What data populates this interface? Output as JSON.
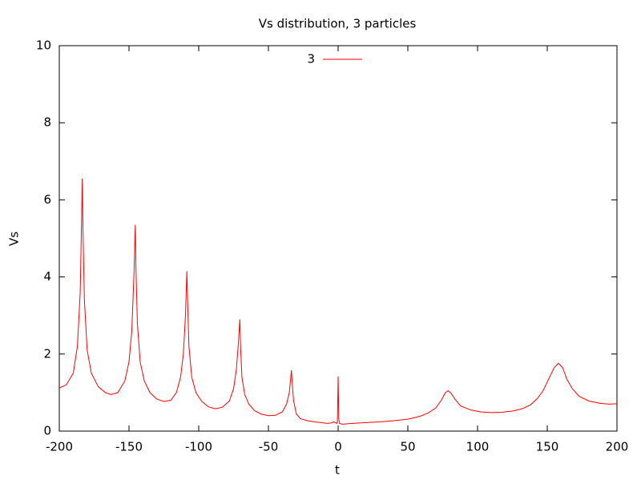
{
  "chart_data": {
    "type": "line",
    "title": "Vs distribution, 3 particles",
    "xlabel": "t",
    "ylabel": "Vs",
    "x": [
      -200,
      -195,
      -190,
      -187,
      -185,
      -184,
      -183.5,
      -183,
      -182,
      -180,
      -177,
      -172,
      -167,
      -163,
      -158,
      -153,
      -150,
      -148,
      -146.5,
      -145.5,
      -145,
      -144,
      -142,
      -139,
      -135,
      -130,
      -125,
      -120,
      -116,
      -113,
      -111,
      -109.5,
      -108.5,
      -108,
      -107,
      -105,
      -102,
      -98,
      -93,
      -88,
      -83,
      -78,
      -75,
      -73,
      -71.5,
      -70.5,
      -70,
      -69,
      -67,
      -64,
      -60,
      -55,
      -50,
      -45,
      -40,
      -37,
      -35,
      -33.5,
      -33,
      -32,
      -30,
      -27,
      -22,
      -17,
      -12,
      -8,
      -5,
      -3,
      -1,
      -0.5,
      0,
      0.5,
      1,
      3,
      10,
      20,
      30,
      40,
      50,
      55,
      60,
      65,
      70,
      74,
      77,
      79,
      81,
      84,
      88,
      95,
      102,
      110,
      118,
      125,
      132,
      138,
      143,
      147,
      151,
      155,
      158,
      161,
      164,
      168,
      173,
      180,
      188,
      195,
      200
    ],
    "series": [
      {
        "name": "3",
        "color": "#ff0000",
        "values": [
          1.12,
          1.2,
          1.5,
          2.2,
          3.6,
          5.5,
          6.55,
          5.2,
          3.4,
          2.1,
          1.5,
          1.15,
          1.0,
          0.95,
          1.0,
          1.3,
          1.8,
          2.6,
          4.0,
          5.35,
          4.2,
          2.8,
          1.8,
          1.3,
          1.0,
          0.83,
          0.77,
          0.8,
          1.0,
          1.4,
          2.0,
          3.0,
          4.15,
          3.4,
          2.2,
          1.4,
          1.0,
          0.78,
          0.63,
          0.58,
          0.62,
          0.78,
          1.1,
          1.6,
          2.3,
          2.9,
          2.2,
          1.4,
          0.95,
          0.7,
          0.53,
          0.44,
          0.4,
          0.41,
          0.5,
          0.7,
          1.0,
          1.58,
          1.3,
          0.8,
          0.45,
          0.32,
          0.27,
          0.24,
          0.22,
          0.2,
          0.21,
          0.24,
          0.2,
          0.25,
          1.42,
          0.3,
          0.2,
          0.18,
          0.2,
          0.22,
          0.24,
          0.27,
          0.31,
          0.35,
          0.4,
          0.48,
          0.6,
          0.8,
          1.0,
          1.05,
          0.98,
          0.82,
          0.65,
          0.55,
          0.5,
          0.48,
          0.49,
          0.52,
          0.58,
          0.68,
          0.85,
          1.05,
          1.35,
          1.65,
          1.76,
          1.65,
          1.35,
          1.1,
          0.9,
          0.78,
          0.72,
          0.7,
          0.71
        ]
      }
    ],
    "xlim": [
      -200,
      200
    ],
    "xticks": [
      -200,
      -150,
      -100,
      -50,
      0,
      50,
      100,
      150,
      200
    ],
    "ylim": [
      0,
      10
    ],
    "yticks": [
      0,
      2,
      4,
      6,
      8,
      10
    ],
    "legend": "top"
  }
}
